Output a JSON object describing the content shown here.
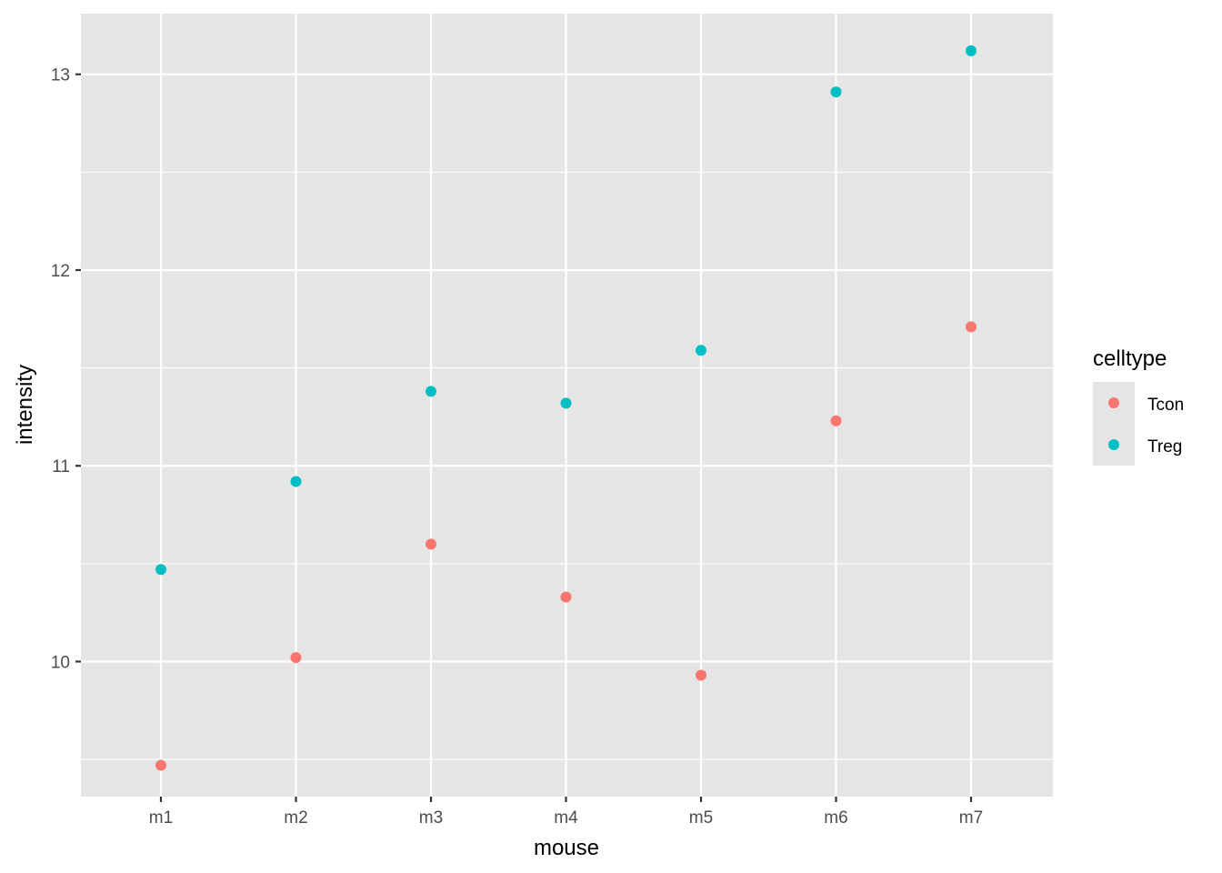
{
  "chart_data": {
    "type": "scatter",
    "xlabel": "mouse",
    "ylabel": "intensity",
    "categories": [
      "m1",
      "m2",
      "m3",
      "m4",
      "m5",
      "m6",
      "m7"
    ],
    "ylim": [
      9.31,
      13.31
    ],
    "yticks": [
      10,
      11,
      12,
      13
    ],
    "y_minor_ticks": [
      9.5,
      10.5,
      11.5,
      12.5
    ],
    "grid": true,
    "panel_background": "#e5e5e5",
    "grid_color": "#ffffff",
    "legend": {
      "title": "celltype",
      "placement": "right"
    },
    "series": [
      {
        "name": "Tcon",
        "color": "#f8766d",
        "values": [
          9.47,
          10.02,
          10.6,
          10.33,
          9.93,
          11.23,
          11.71
        ]
      },
      {
        "name": "Treg",
        "color": "#00bfc4",
        "values": [
          10.47,
          10.92,
          11.38,
          11.32,
          11.59,
          12.91,
          13.12
        ]
      }
    ]
  }
}
